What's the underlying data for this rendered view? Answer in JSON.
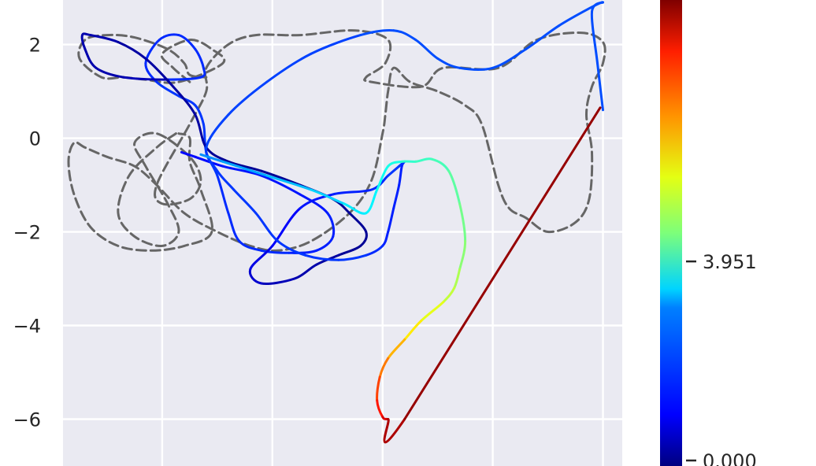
{
  "chart_data": {
    "type": "line",
    "title": "",
    "xlabel": "",
    "ylabel": "",
    "ylim": [
      -7.0,
      2.95
    ],
    "y_ticks": [
      "2",
      "0",
      "−2",
      "−4",
      "−6"
    ],
    "y_tick_values": [
      2,
      0,
      -2,
      -4,
      -6
    ],
    "x_gridlines_data": [
      -1.5,
      0.5,
      2.5,
      4.5,
      6.5
    ],
    "xlim": [
      -3.3,
      6.85
    ],
    "grid": true,
    "background": "#eaeaf2",
    "colorbar": {
      "colormap": "jet",
      "ticks": [
        {
          "value": 3.951,
          "label": "3.951"
        },
        {
          "value": 0.0,
          "label": "0.000"
        }
      ],
      "range": [
        0.0,
        9.0
      ]
    },
    "series": [
      {
        "style": "dashed",
        "color": "#666666",
        "x": [
          -1.25,
          -1.6,
          -2.1,
          -2.3,
          -2.0,
          -1.5,
          -1.2,
          -1.4,
          -1.8,
          -2.0,
          -1.6,
          -1.0,
          -0.8,
          -1.0,
          -1.5,
          -1.6,
          -1.0,
          -0.7,
          -0.7,
          -0.3,
          0.2,
          1.0,
          2.0,
          2.6,
          2.55,
          2.2,
          2.3,
          3.2,
          3.6,
          4.6,
          5.3,
          6.1,
          6.5,
          6.5,
          6.3,
          6.2,
          6.3,
          6.25,
          6.0,
          5.5,
          5.1,
          4.8,
          4.6,
          4.3,
          4.0,
          3.5,
          3.0,
          2.7,
          2.6,
          2.55,
          2.5,
          2.3,
          1.9,
          1.2,
          0.6,
          0.1,
          -0.5,
          -1.1,
          -1.6,
          -2.0,
          -2.5,
          -2.9,
          -3.1,
          -3.2,
          -3.1,
          -2.8,
          -2.3,
          -1.7,
          -1.1,
          -0.6,
          -0.8,
          -1.0,
          -1.0,
          -1.2
        ],
        "y": [
          0.1,
          -0.2,
          -0.8,
          -1.6,
          -2.1,
          -2.3,
          -2.0,
          -1.4,
          -0.6,
          -0.1,
          0.1,
          -0.4,
          -0.9,
          -1.3,
          -1.4,
          -1.0,
          0.3,
          1.0,
          1.5,
          2.0,
          2.2,
          2.2,
          2.3,
          2.1,
          1.6,
          1.3,
          1.2,
          1.1,
          1.5,
          1.5,
          2.1,
          2.25,
          2.05,
          1.6,
          1.1,
          0.5,
          -0.3,
          -1.3,
          -1.8,
          -2.0,
          -1.7,
          -1.5,
          -1.0,
          0.3,
          0.7,
          1.0,
          1.2,
          1.5,
          1.0,
          0.5,
          0.1,
          -0.9,
          -1.6,
          -2.2,
          -2.4,
          -2.3,
          -2.0,
          -1.6,
          -1.0,
          -0.6,
          -0.4,
          -0.2,
          -0.1,
          -0.5,
          -1.2,
          -1.9,
          -2.3,
          -2.4,
          -2.3,
          -2.0,
          -1.1,
          -0.5,
          0.0,
          0.1
        ]
      },
      {
        "style": "dashed-loops",
        "color": "#666666",
        "x": [
          -1.0,
          -1.3,
          -1.5,
          -1.0,
          -0.6,
          -0.4,
          -1.2,
          -1.8,
          -2.2,
          -2.6,
          -3.0,
          -2.9,
          -2.5,
          -2.0,
          -1.4,
          -1.1,
          -1.0,
          -0.7
        ],
        "y": [
          1.2,
          1.5,
          1.8,
          2.1,
          1.9,
          1.6,
          1.2,
          1.25,
          1.3,
          1.3,
          1.7,
          2.1,
          2.2,
          2.15,
          1.9,
          1.6,
          1.35,
          1.3
        ]
      },
      {
        "style": "solid-colormap",
        "x": [
          -1.15,
          -0.9,
          -0.4,
          0.3,
          1.0,
          1.5,
          1.6,
          1.3,
          0.8,
          0.3,
          -0.1,
          -0.3,
          -0.5,
          -0.7,
          -0.75,
          -0.9,
          -1.2,
          -1.6,
          -1.8,
          -1.55,
          -1.2,
          -0.9,
          -0.75,
          -0.8,
          -1.4,
          -2.2,
          -2.7,
          -2.9,
          -2.95,
          -2.8,
          -2.3,
          -1.8,
          -1.3,
          -0.9,
          -0.7,
          -0.3,
          0.3,
          1.0,
          1.6,
          1.9,
          2.2,
          2.1,
          1.7,
          1.3,
          0.9,
          0.3,
          0.1,
          0.5,
          1.0,
          1.6,
          2.3,
          2.6,
          2.8,
          2.9,
          2.85,
          2.8,
          2.7,
          2.6,
          2.5,
          2.2,
          1.7,
          1.1,
          0.6,
          0.2,
          -0.2,
          -0.5,
          -0.7,
          -0.3,
          0.4,
          1.2,
          2.1,
          2.7,
          3.1,
          3.5,
          3.9,
          4.5,
          5.1,
          5.7,
          6.3,
          6.5,
          6.3,
          6.4,
          6.5
        ],
        "y": [
          -0.3,
          -0.4,
          -0.6,
          -0.8,
          -1.2,
          -1.6,
          -2.1,
          -2.4,
          -2.45,
          -2.4,
          -2.2,
          -1.6,
          -0.8,
          -0.3,
          0.3,
          0.7,
          0.9,
          1.2,
          1.6,
          2.1,
          2.2,
          1.9,
          1.5,
          1.3,
          1.25,
          1.3,
          1.5,
          1.9,
          2.2,
          2.2,
          2.05,
          1.7,
          1.1,
          0.5,
          -0.2,
          -0.5,
          -0.7,
          -1.0,
          -1.3,
          -1.6,
          -2.0,
          -2.3,
          -2.5,
          -2.7,
          -3.0,
          -3.1,
          -2.8,
          -2.3,
          -1.5,
          -1.2,
          -1.1,
          -0.8,
          -0.6,
          -0.5,
          -0.6,
          -1.0,
          -1.5,
          -2.0,
          -2.3,
          -2.5,
          -2.6,
          -2.5,
          -2.2,
          -1.6,
          -1.1,
          -0.7,
          -0.2,
          0.5,
          1.2,
          1.8,
          2.2,
          2.3,
          2.1,
          1.7,
          1.5,
          1.5,
          1.9,
          2.4,
          2.8,
          2.9,
          2.7,
          1.6,
          0.6
        ],
        "cvalues": [
          1.2,
          1.2,
          1.3,
          1.3,
          1.3,
          1.4,
          1.4,
          1.4,
          1.5,
          1.5,
          1.5,
          1.5,
          1.6,
          1.6,
          1.6,
          1.6,
          1.6,
          1.5,
          1.5,
          1.5,
          1.5,
          1.5,
          1.5,
          1.5,
          0.5,
          0.4,
          0.4,
          0.4,
          0.4,
          0.4,
          0.3,
          0.3,
          0.3,
          0.3,
          0.2,
          0.2,
          0.2,
          0.2,
          0.2,
          0.2,
          0.2,
          0.2,
          0.3,
          0.4,
          0.5,
          0.7,
          0.9,
          1.1,
          1.3,
          1.4,
          1.5,
          1.6,
          1.6,
          1.5,
          1.4,
          1.4,
          1.4,
          1.4,
          1.5,
          1.6,
          1.6,
          1.6,
          1.6,
          1.6,
          1.6,
          1.6,
          1.7,
          1.7,
          1.7,
          1.7,
          1.8,
          1.8,
          1.8,
          1.8,
          1.8,
          1.8,
          1.8,
          1.8,
          1.8,
          1.8,
          1.8,
          1.8,
          1.8
        ]
      },
      {
        "style": "solid-colormap",
        "x": [
          -0.8,
          -0.4,
          0.4,
          1.2,
          1.8,
          2.2,
          2.4,
          2.6,
          2.85,
          3.1,
          3.4,
          3.7,
          3.9,
          4.0,
          3.9,
          3.8,
          3.6,
          3.2,
          2.9,
          2.6,
          2.45,
          2.4,
          2.5,
          2.6,
          2.9,
          6.45
        ],
        "y": [
          -0.35,
          -0.5,
          -0.8,
          -1.1,
          -1.4,
          -1.6,
          -1.1,
          -0.6,
          -0.5,
          -0.5,
          -0.45,
          -0.7,
          -1.4,
          -2.2,
          -2.8,
          -3.2,
          -3.5,
          -3.9,
          -4.3,
          -4.7,
          -5.1,
          -5.6,
          -5.95,
          -6.0,
          -6.0,
          0.65
        ],
        "cvalues": [
          2.4,
          2.6,
          2.8,
          3.0,
          3.2,
          3.3,
          3.5,
          3.6,
          3.8,
          3.9,
          4.0,
          4.2,
          4.4,
          4.6,
          4.9,
          5.1,
          5.4,
          5.8,
          6.3,
          6.8,
          7.3,
          7.7,
          8.2,
          8.6,
          8.8,
          9.0
        ]
      }
    ]
  }
}
